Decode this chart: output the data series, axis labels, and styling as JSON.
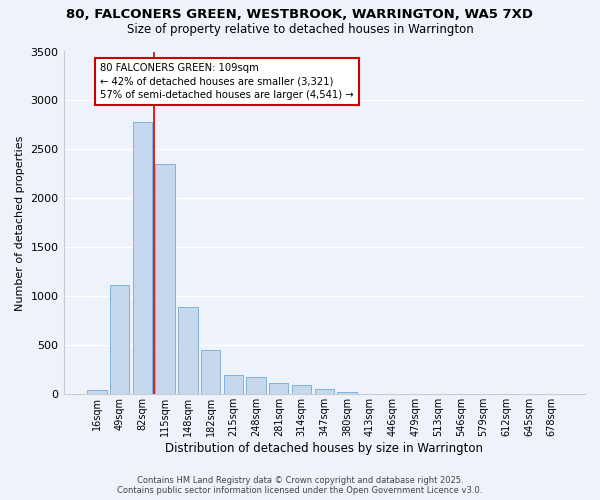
{
  "title_line1": "80, FALCONERS GREEN, WESTBROOK, WARRINGTON, WA5 7XD",
  "title_line2": "Size of property relative to detached houses in Warrington",
  "xlabel": "Distribution of detached houses by size in Warrington",
  "ylabel": "Number of detached properties",
  "categories": [
    "16sqm",
    "49sqm",
    "82sqm",
    "115sqm",
    "148sqm",
    "182sqm",
    "215sqm",
    "248sqm",
    "281sqm",
    "314sqm",
    "347sqm",
    "380sqm",
    "413sqm",
    "446sqm",
    "479sqm",
    "513sqm",
    "546sqm",
    "579sqm",
    "612sqm",
    "645sqm",
    "678sqm"
  ],
  "values": [
    45,
    1120,
    2780,
    2350,
    890,
    450,
    200,
    175,
    115,
    90,
    55,
    25,
    0,
    0,
    0,
    0,
    0,
    0,
    0,
    0,
    0
  ],
  "bar_color": "#c5d8ee",
  "bar_edge_color": "#7fb3d8",
  "vline_x_index": 2.5,
  "vline_color": "#cc0000",
  "annotation_text": "80 FALCONERS GREEN: 109sqm\n← 42% of detached houses are smaller (3,321)\n57% of semi-detached houses are larger (4,541) →",
  "annotation_box_color": "#ffffff",
  "annotation_box_edge_color": "#cc0000",
  "ylim": [
    0,
    3500
  ],
  "background_color": "#eef2fb",
  "grid_color": "#ffffff",
  "footer_line1": "Contains HM Land Registry data © Crown copyright and database right 2025.",
  "footer_line2": "Contains public sector information licensed under the Open Government Licence v3.0."
}
